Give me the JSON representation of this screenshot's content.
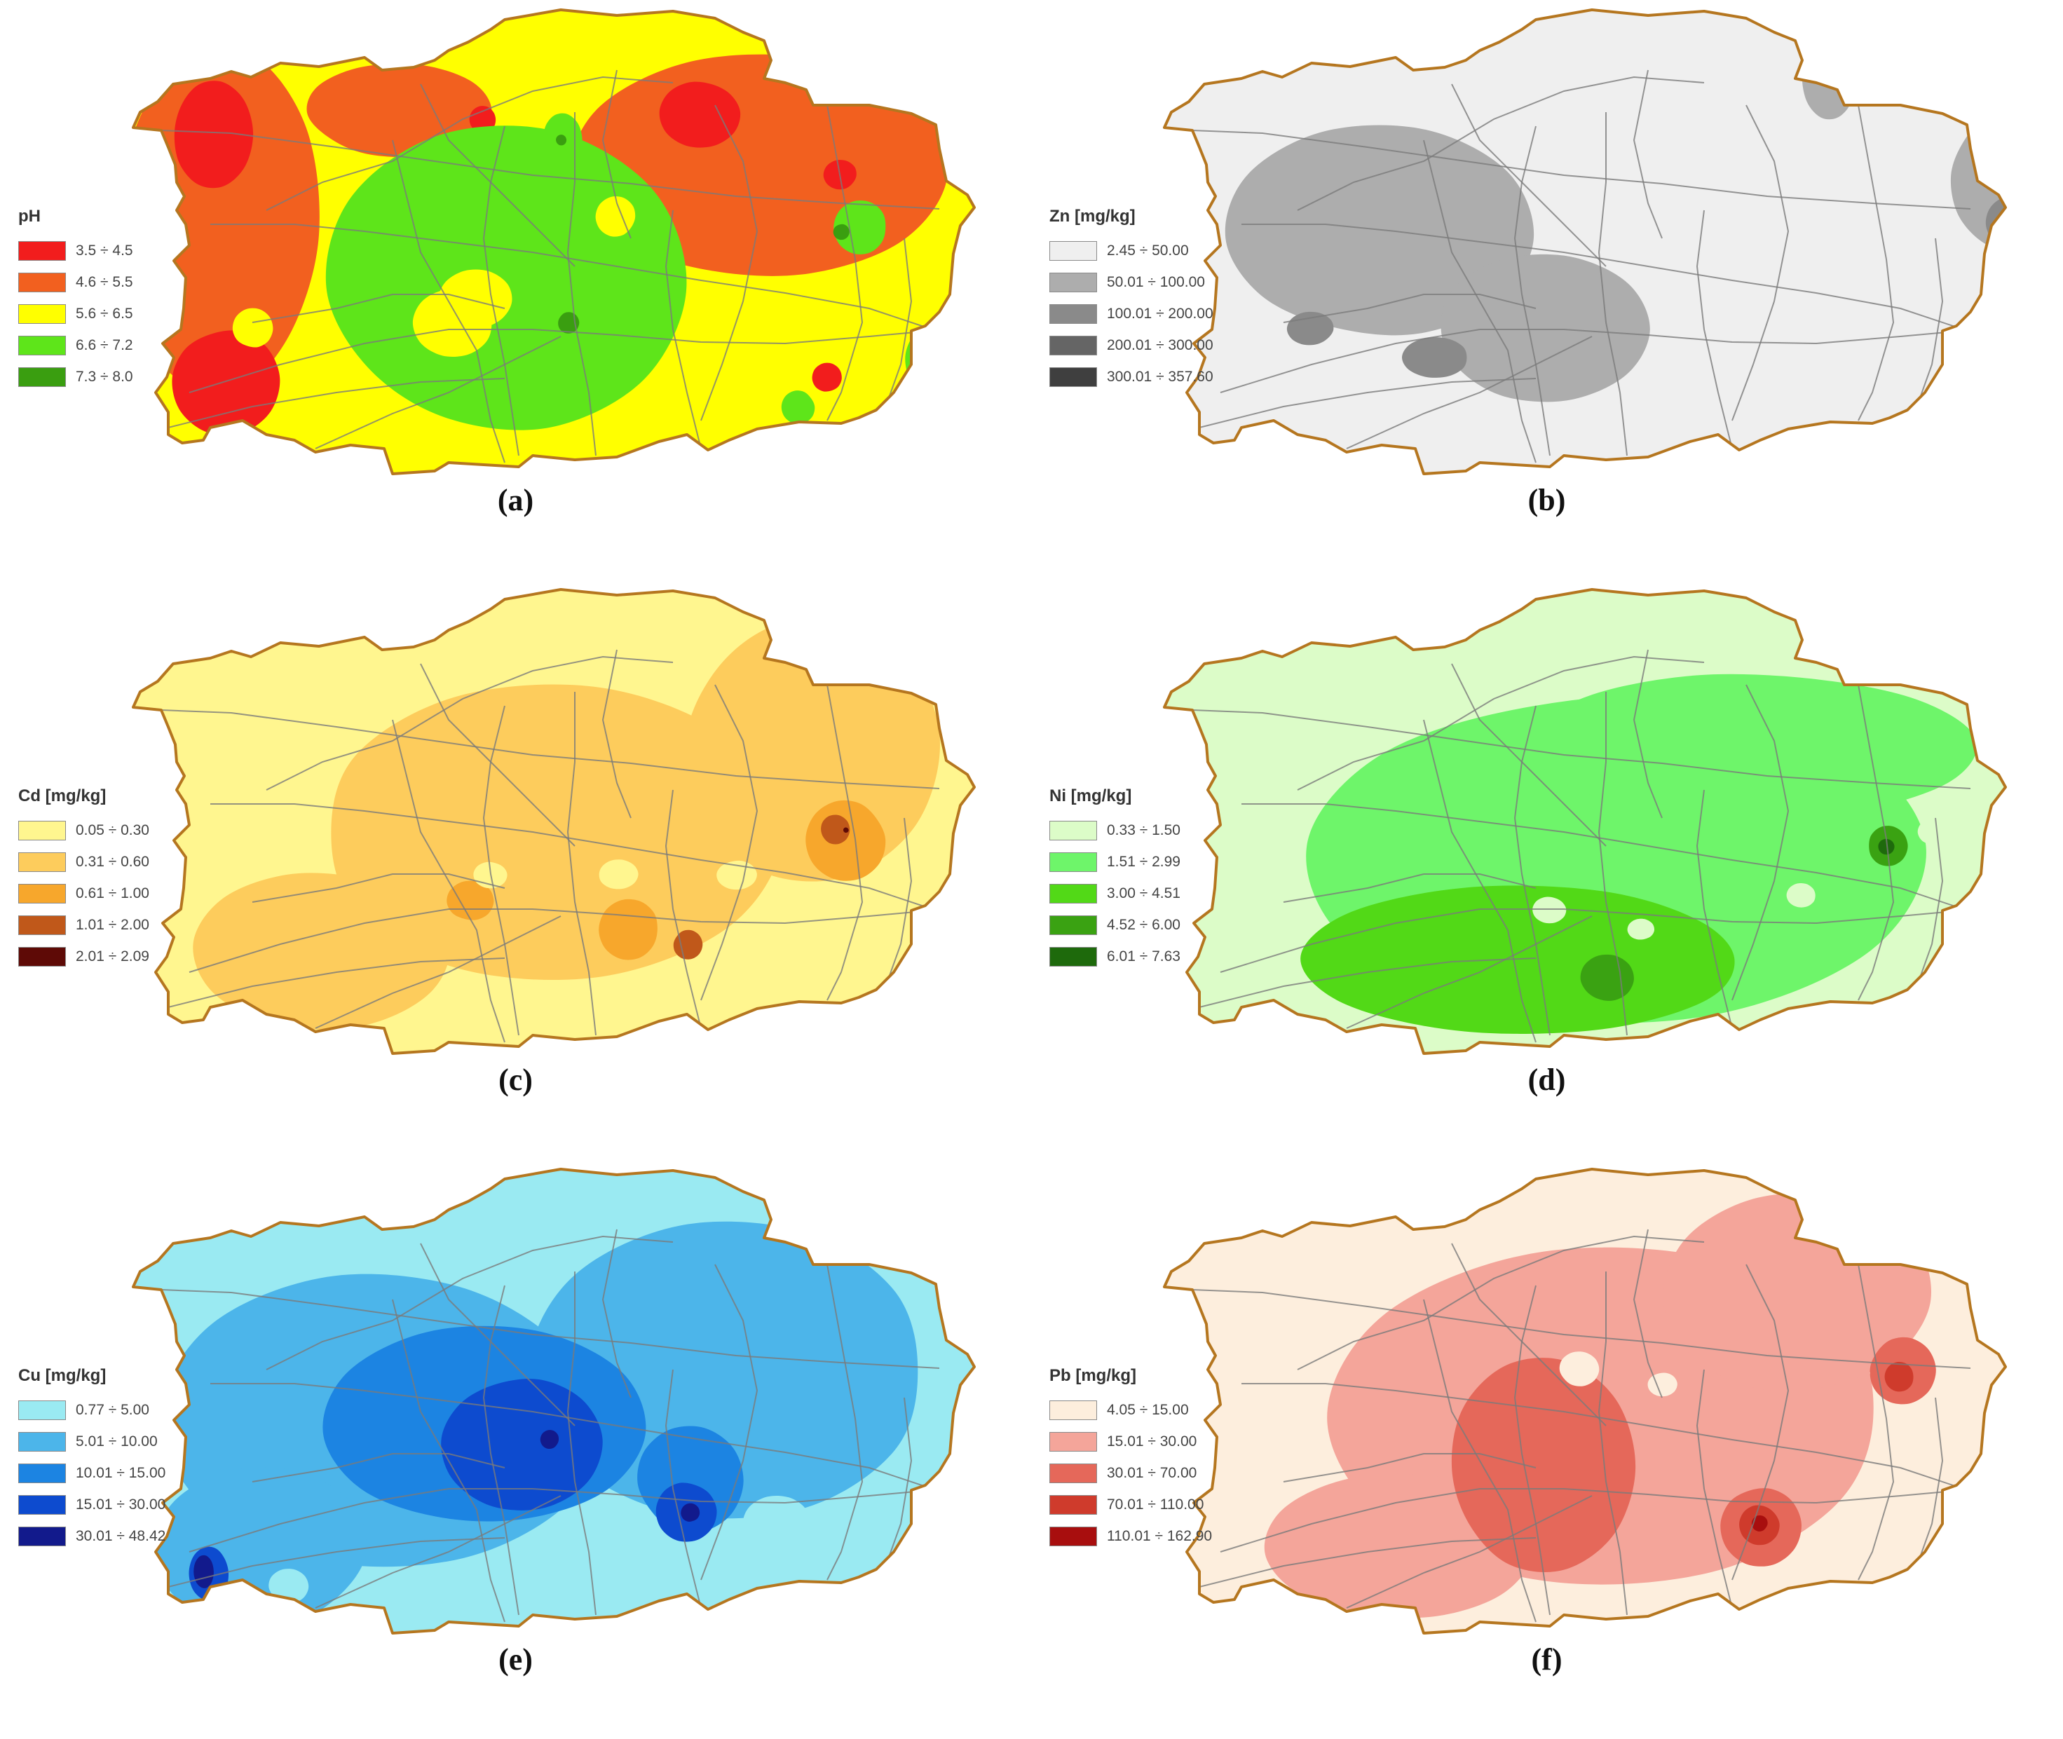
{
  "colors": {
    "boundary": "#b5761f",
    "roads": "#7a7a7a"
  },
  "panels": [
    {
      "id": "a",
      "caption": "(a)",
      "legend_title": "pH",
      "base_color": "#ffff00",
      "classes": [
        {
          "label": "3.5 ÷ 4.5",
          "color": "#f21d1d"
        },
        {
          "label": "4.6 ÷ 5.5",
          "color": "#f2601f"
        },
        {
          "label": "5.6 ÷ 6.5",
          "color": "#ffff00"
        },
        {
          "label": "6.6 ÷ 7.2",
          "color": "#5ee51a"
        },
        {
          "label": "7.3 ÷ 8.0",
          "color": "#3a9e10"
        }
      ]
    },
    {
      "id": "b",
      "caption": "(b)",
      "legend_title": "Zn [mg/kg]",
      "base_color": "#efefef",
      "classes": [
        {
          "label": "2.45 ÷ 50.00",
          "color": "#efefef"
        },
        {
          "label": "50.01 ÷ 100.00",
          "color": "#adadad"
        },
        {
          "label": "100.01 ÷ 200.00",
          "color": "#8a8a8a"
        },
        {
          "label": "200.01 ÷ 300.00",
          "color": "#656565"
        },
        {
          "label": "300.01 ÷ 357.60",
          "color": "#3f3f3f"
        }
      ]
    },
    {
      "id": "c",
      "caption": "(c)",
      "legend_title": "Cd [mg/kg]",
      "base_color": "#fff68f",
      "classes": [
        {
          "label": "0.05 ÷ 0.30",
          "color": "#fff68f"
        },
        {
          "label": "0.31 ÷ 0.60",
          "color": "#fdcc5c"
        },
        {
          "label": "0.61 ÷ 1.00",
          "color": "#f7a72c"
        },
        {
          "label": "1.01 ÷ 2.00",
          "color": "#c0581a"
        },
        {
          "label": "2.01 ÷ 2.09",
          "color": "#5e0a06"
        }
      ]
    },
    {
      "id": "d",
      "caption": "(d)",
      "legend_title": "Ni [mg/kg]",
      "base_color": "#dcfcc8",
      "classes": [
        {
          "label": "0.33 ÷ 1.50",
          "color": "#dcfcc8"
        },
        {
          "label": "1.51 ÷ 2.99",
          "color": "#6ef56a"
        },
        {
          "label": "3.00 ÷ 4.51",
          "color": "#52d917"
        },
        {
          "label": "4.52 ÷ 6.00",
          "color": "#3aa212"
        },
        {
          "label": "6.01 ÷ 7.63",
          "color": "#1e6a0c"
        }
      ]
    },
    {
      "id": "e",
      "caption": "(e)",
      "legend_title": "Cu [mg/kg]",
      "base_color": "#9aeaf2",
      "classes": [
        {
          "label": "0.77 ÷  5.00",
          "color": "#9aeaf2"
        },
        {
          "label": "5.01 ÷ 10.00",
          "color": "#4cb5ea"
        },
        {
          "label": "10.01 ÷ 15.00",
          "color": "#1c84e2"
        },
        {
          "label": "15.01 ÷ 30.00",
          "color": "#0d4bcf"
        },
        {
          "label": "30.01 ÷ 48.42",
          "color": "#121a8c"
        }
      ]
    },
    {
      "id": "f",
      "caption": "(f)",
      "legend_title": "Pb [mg/kg]",
      "base_color": "#fdeedd",
      "classes": [
        {
          "label": "4.05 ÷  15.00",
          "color": "#fdeedd"
        },
        {
          "label": "15.01 ÷  30.00",
          "color": "#f4a59a"
        },
        {
          "label": "30.01 ÷  70.00",
          "color": "#e5685a"
        },
        {
          "label": "70.01 ÷ 110.00",
          "color": "#cf3b2c"
        },
        {
          "label": "110.01 ÷ 162.90",
          "color": "#a80e0e"
        }
      ]
    }
  ]
}
